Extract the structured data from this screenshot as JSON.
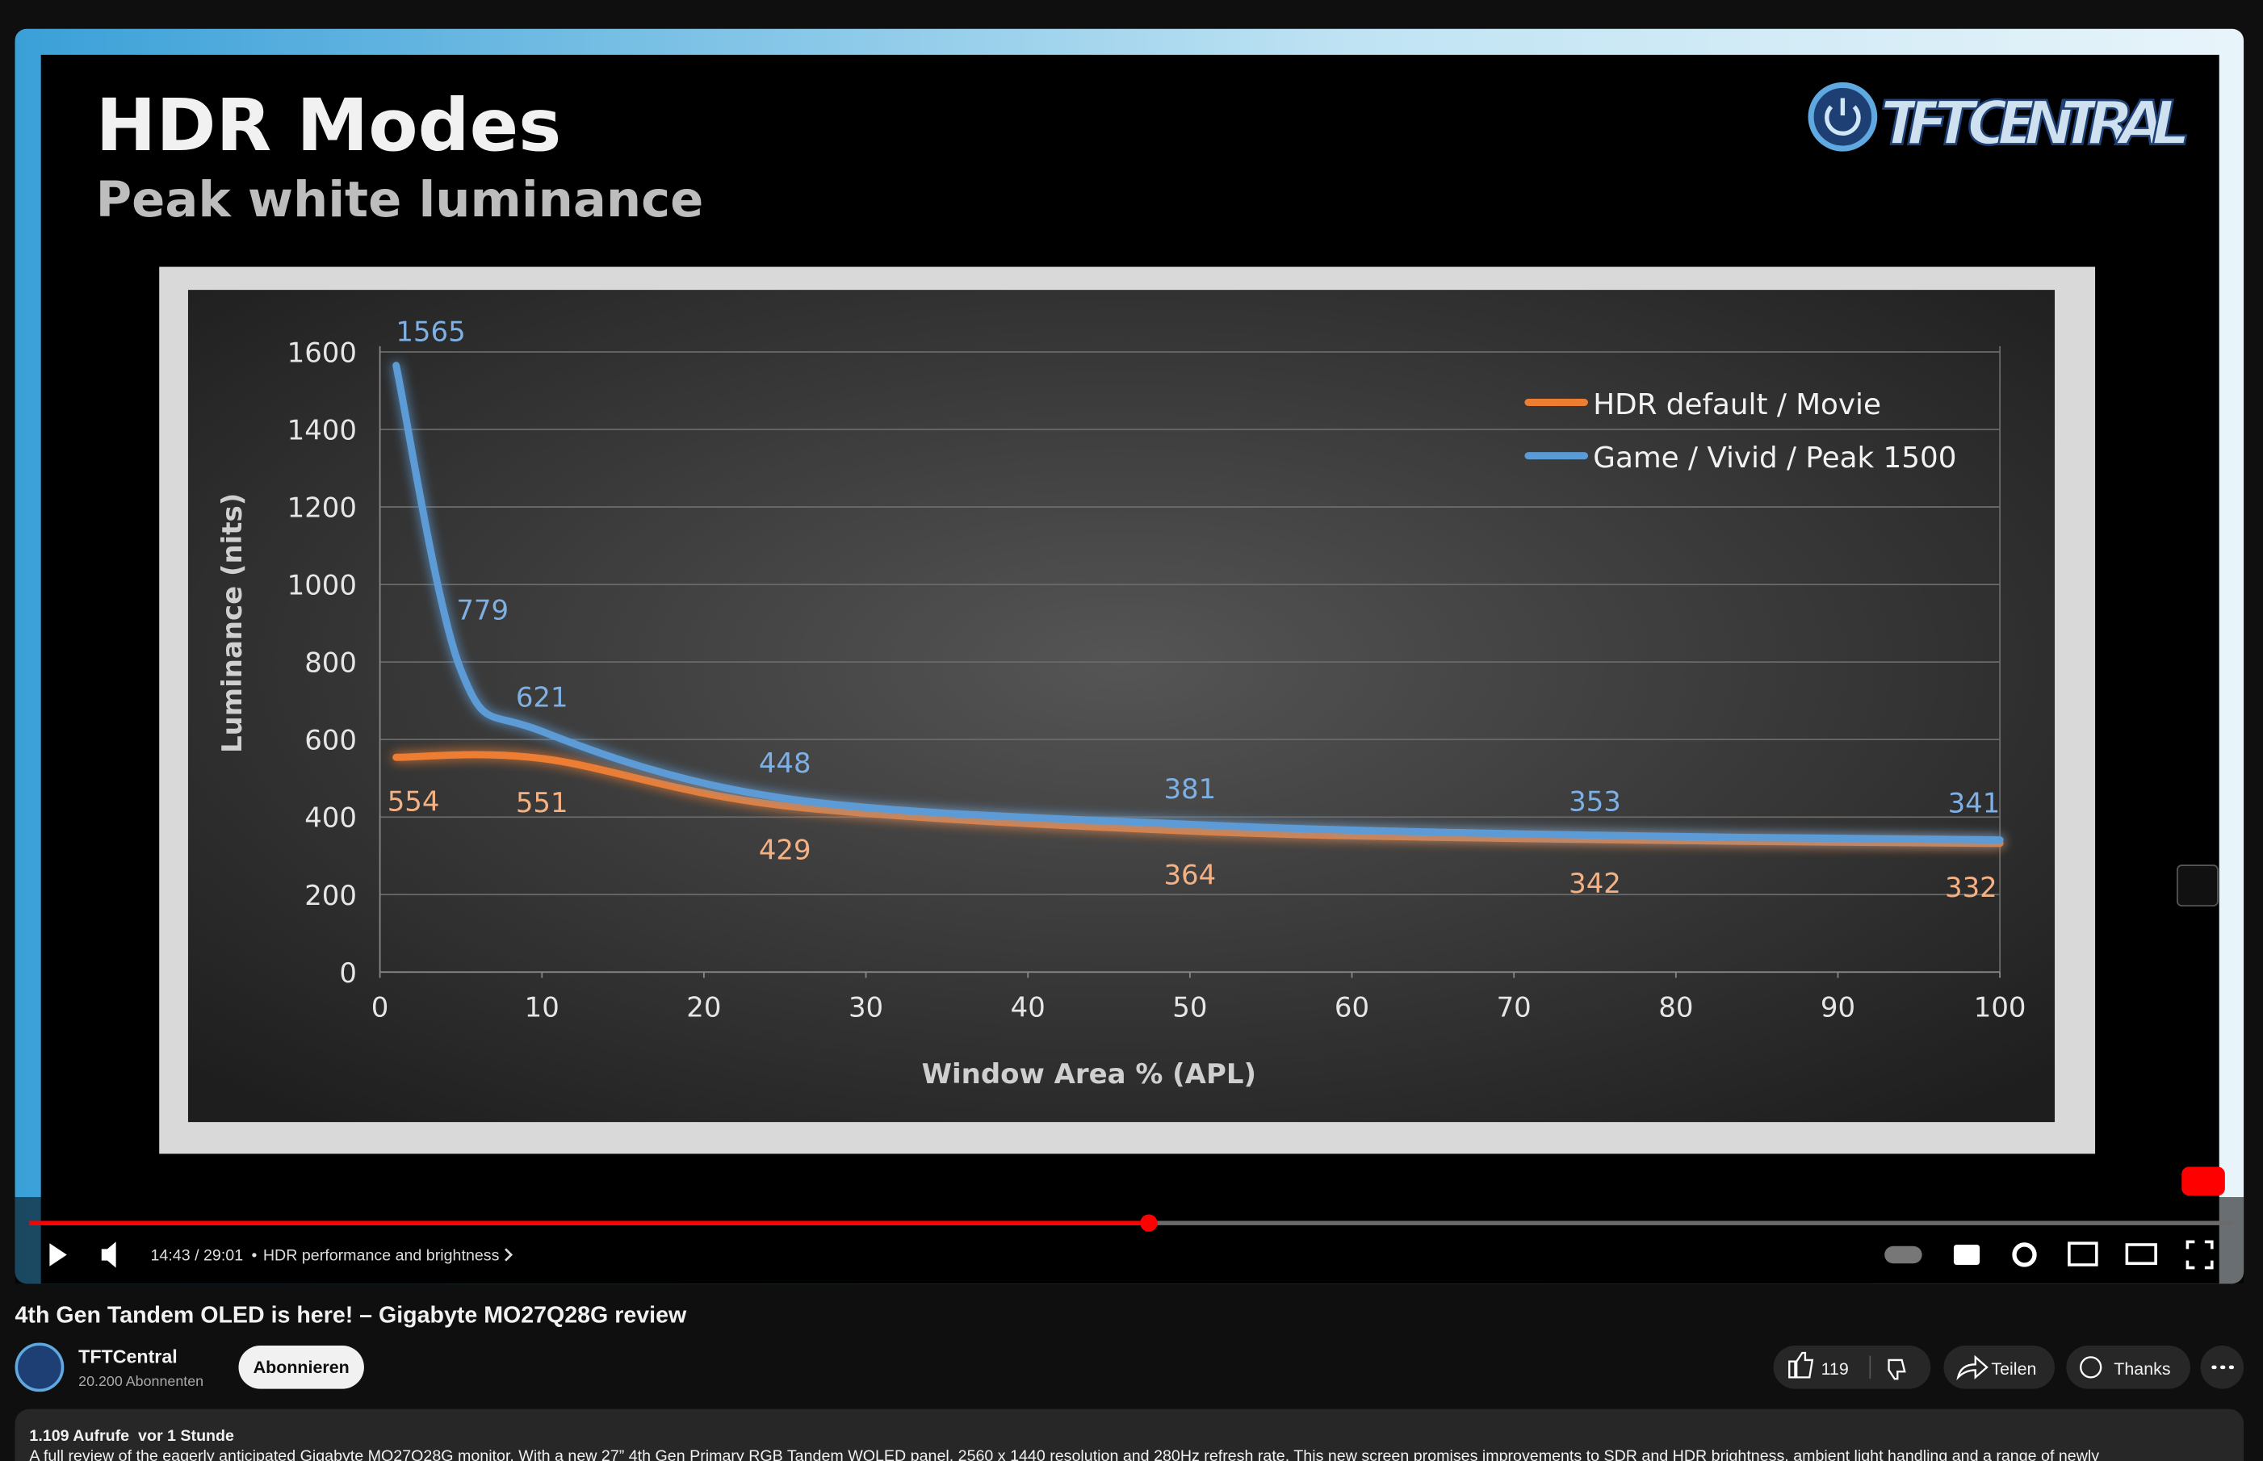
{
  "slide": {
    "title": "HDR Modes",
    "subtitle": "Peak white luminance",
    "logo": "TFT CENTRAL"
  },
  "chart_data": {
    "type": "line",
    "x_label": "Window Area % (APL)",
    "y_label": "Luminance (nits)",
    "xlim": [
      0,
      100
    ],
    "xticks": [
      0,
      10,
      20,
      30,
      40,
      50,
      60,
      70,
      80,
      90,
      100
    ],
    "ylim": [
      0,
      1600
    ],
    "yticks": [
      0,
      200,
      400,
      600,
      800,
      1000,
      1200,
      1400,
      1600
    ],
    "grid": true,
    "legend": "top-right",
    "series": [
      {
        "name": "HDR default / Movie",
        "color": "#ed7d31",
        "x": [
          1,
          10,
          25,
          50,
          75,
          100
        ],
        "values": [
          554,
          551,
          429,
          364,
          342,
          332
        ]
      },
      {
        "name": "Game / Vivid / Peak 1500",
        "color": "#5b9bd5",
        "x": [
          1,
          5,
          10,
          25,
          50,
          75,
          100
        ],
        "values": [
          1565,
          779,
          621,
          448,
          381,
          353,
          341
        ]
      }
    ]
  },
  "player": {
    "time": "14:43 / 29:01",
    "chapter": "HDR performance and brightness"
  },
  "page": {
    "video_title": "4th Gen Tandem OLED is here! – Gigabyte MO27Q28G review",
    "channel": "TFTCentral",
    "subscribers": "20.200 Abonnenten",
    "subscribe": "Abonnieren",
    "likes": "119",
    "share": "Teilen",
    "thanks": "Thanks",
    "stats": "1.109 Aufrufe  vor 1 Stunde",
    "description": "A full review of the eagerly anticipated Gigabyte MO27Q28G monitor. With a new 27” 4th Gen Primary RGB Tandem WOLED panel, 2560 x 1440 resolution and 280Hz refresh rate. This new screen promises improvements to SDR and HDR brightness, ambient light handling and a range of newly"
  }
}
